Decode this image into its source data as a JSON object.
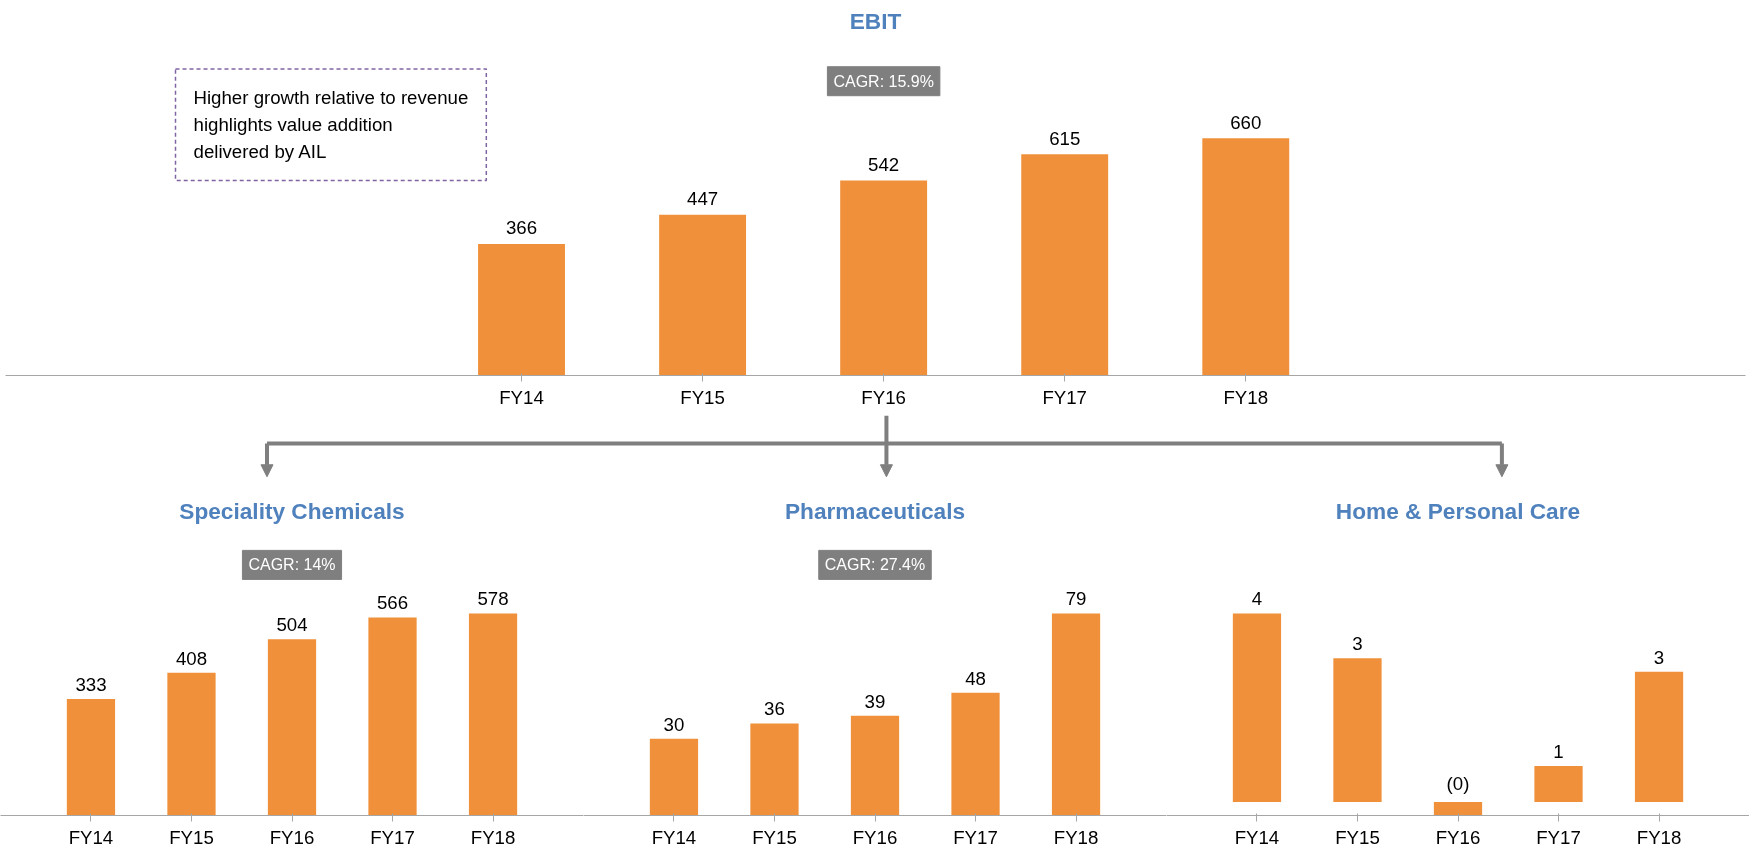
{
  "chart_data": [
    {
      "type": "bar",
      "title": "EBIT",
      "categories": [
        "FY14",
        "FY15",
        "FY16",
        "FY17",
        "FY18"
      ],
      "values": [
        366,
        447,
        542,
        615,
        660
      ],
      "color": "#f0903a",
      "data_labels": true,
      "annotations": [
        "CAGR: 15.9%",
        "Higher growth relative to revenue\nhighlights value addition\ndelivered by AIL"
      ]
    },
    {
      "type": "bar",
      "title": "Speciality Chemicals",
      "categories": [
        "FY14",
        "FY15",
        "FY16",
        "FY17",
        "FY18"
      ],
      "values": [
        333,
        408,
        504,
        566,
        578
      ],
      "color": "#f0903a",
      "data_labels": true,
      "annotations": [
        "CAGR: 14%"
      ]
    },
    {
      "type": "bar",
      "title": "Pharmaceuticals",
      "categories": [
        "FY14",
        "FY15",
        "FY16",
        "FY17",
        "FY18"
      ],
      "values": [
        30,
        36,
        39,
        48,
        79
      ],
      "color": "#f0903a",
      "data_labels": true,
      "annotations": [
        "CAGR: 27.4%"
      ]
    },
    {
      "type": "bar",
      "title": "Home & Personal Care",
      "categories": [
        "FY14",
        "FY15",
        "FY16",
        "FY17",
        "FY18"
      ],
      "values": [
        4.2,
        3.2,
        -0.3,
        0.8,
        2.9
      ],
      "value_labels": [
        "4",
        "3",
        "(0)",
        "1",
        "3"
      ],
      "color": "#f0903a"
    }
  ]
}
